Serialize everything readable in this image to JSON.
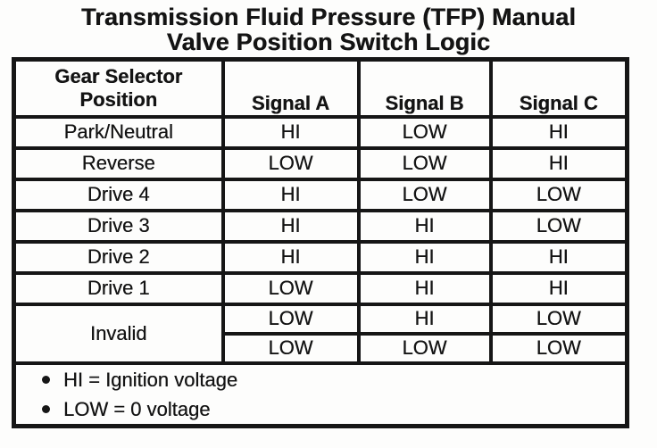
{
  "document": {
    "title_line1": "Transmission Fluid Pressure (TFP) Manual",
    "title_line2": "Valve Position Switch Logic"
  },
  "table": {
    "header": {
      "gear_selector_line1": "Gear Selector",
      "gear_selector_line2": "Position",
      "signal_a": "Signal A",
      "signal_b": "Signal B",
      "signal_c": "Signal C"
    },
    "rows": [
      {
        "position": "Park/Neutral",
        "a": "HI",
        "b": "LOW",
        "c": "HI"
      },
      {
        "position": "Reverse",
        "a": "LOW",
        "b": "LOW",
        "c": "HI"
      },
      {
        "position": "Drive 4",
        "a": "HI",
        "b": "LOW",
        "c": "LOW"
      },
      {
        "position": "Drive 3",
        "a": "HI",
        "b": "HI",
        "c": "LOW"
      },
      {
        "position": "Drive 2",
        "a": "HI",
        "b": "HI",
        "c": "HI"
      },
      {
        "position": "Drive 1",
        "a": "LOW",
        "b": "HI",
        "c": "HI"
      }
    ],
    "invalid": {
      "position": "Invalid",
      "row1": {
        "a": "LOW",
        "b": "HI",
        "c": "LOW"
      },
      "row2": {
        "a": "LOW",
        "b": "LOW",
        "c": "LOW"
      }
    },
    "notes": [
      "HI = Ignition voltage",
      "LOW = 0 voltage"
    ]
  },
  "colors": {
    "ink": "#161616",
    "paper": "#fdfdfc"
  }
}
